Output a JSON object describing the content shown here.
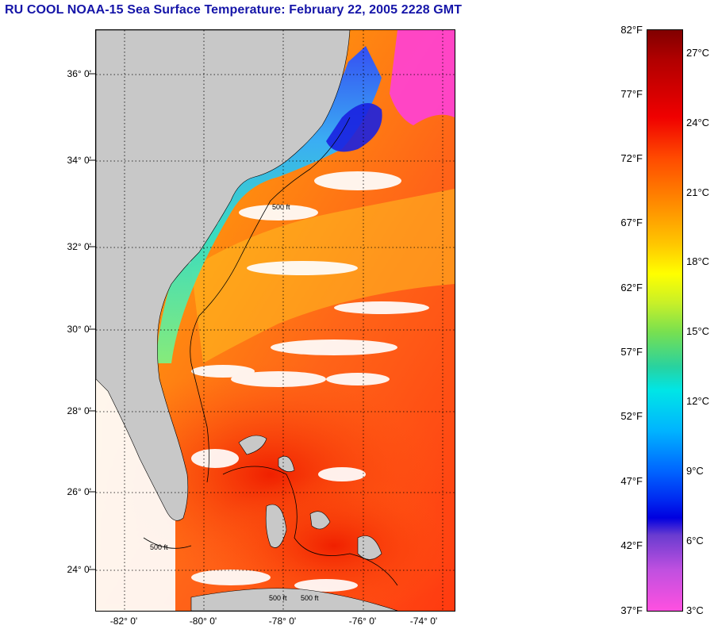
{
  "title": "RU COOL  NOAA-15  Sea Surface Temperature:  February 22, 2005 2228 GMT",
  "map": {
    "lat_labels": [
      "36° 0'",
      "34° 0'",
      "32° 0'",
      "30° 0'",
      "28° 0'",
      "26° 0'",
      "24° 0'"
    ],
    "lon_labels": [
      "-82° 0'",
      "-80° 0'",
      "-78° 0'",
      "-76° 0'",
      "-74° 0'"
    ],
    "contour_labels": [
      "500 ft",
      "500 ft",
      "500 ft",
      "500 ft"
    ],
    "colors": {
      "land": "#c8c8c8",
      "no_data": "#ffffff",
      "gridline": "#000000"
    }
  },
  "colorbar": {
    "fahrenheit": [
      "82°F",
      "77°F",
      "72°F",
      "67°F",
      "62°F",
      "57°F",
      "52°F",
      "47°F",
      "42°F",
      "37°F"
    ],
    "celsius": [
      "27°C",
      "24°C",
      "21°C",
      "18°C",
      "15°C",
      "12°C",
      "9°C",
      "6°C",
      "3°C"
    ]
  }
}
